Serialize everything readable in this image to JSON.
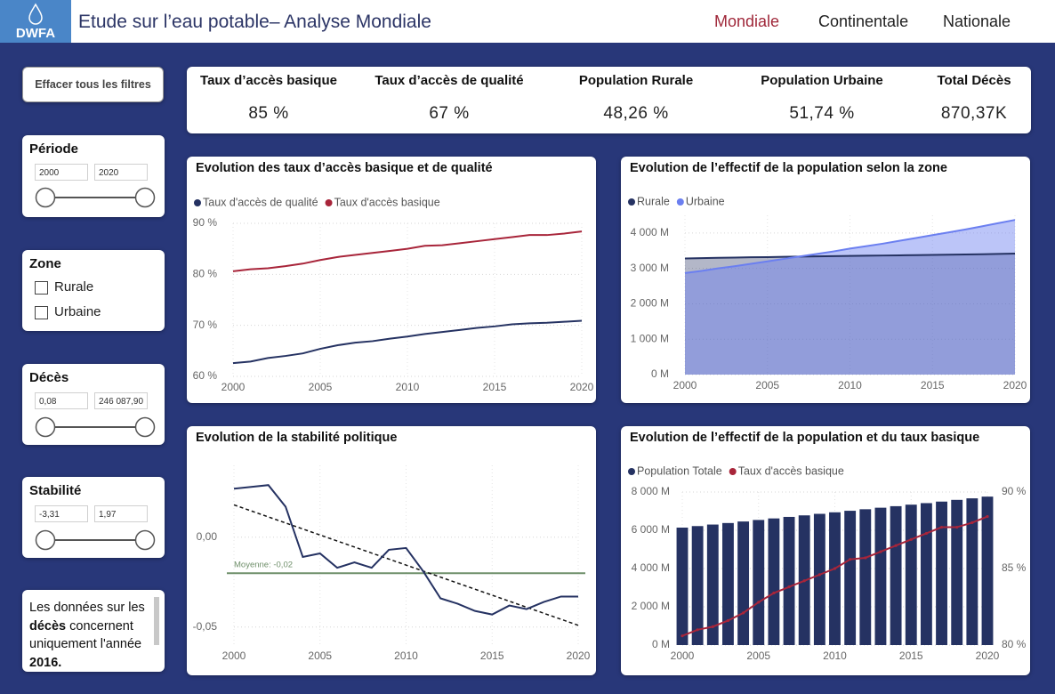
{
  "header": {
    "logo": "DWFA",
    "title": "Etude sur l’eau potable– Analyse Mondiale",
    "tabs": [
      "Mondiale",
      "Continentale",
      "Nationale"
    ]
  },
  "filters": {
    "clear": "Effacer tous les filtres",
    "periode": {
      "title": "Période",
      "min": "2000",
      "max": "2020"
    },
    "zone": {
      "title": "Zone",
      "options": [
        "Rurale",
        "Urbaine"
      ]
    },
    "deces": {
      "title": "Décès",
      "min": "0,08",
      "max": "246 087,90"
    },
    "stabilite": {
      "title": "Stabilité",
      "min": "-3,31",
      "max": "1,97"
    }
  },
  "note": [
    "Les données sur les ",
    "décès",
    " concernent uniquement l'année ",
    "2016."
  ],
  "kpis": [
    {
      "label": "Taux d’accès basique",
      "value": "85 %"
    },
    {
      "label": "Taux d’accès de qualité",
      "value": "67 %"
    },
    {
      "label": "Population Rurale",
      "value": "48,26 %"
    },
    {
      "label": "Population Urbaine",
      "value": "51,74 %"
    },
    {
      "label": "Total Décès",
      "value": "870,37K"
    }
  ],
  "chart_data": [
    {
      "type": "line",
      "title": "Evolution des taux d’accès basique et de qualité",
      "x": [
        2000,
        2001,
        2002,
        2003,
        2004,
        2005,
        2006,
        2007,
        2008,
        2009,
        2010,
        2011,
        2012,
        2013,
        2014,
        2015,
        2016,
        2017,
        2018,
        2019,
        2020
      ],
      "xlim": [
        2000,
        2020
      ],
      "xticks": [
        2000,
        2005,
        2010,
        2015,
        2020
      ],
      "ylim": [
        60,
        90
      ],
      "yticks": [
        {
          "value": 60,
          "label": "60 %"
        },
        {
          "value": 70,
          "label": "70 %"
        },
        {
          "value": 80,
          "label": "80 %"
        },
        {
          "value": 90,
          "label": "90 %"
        }
      ],
      "grid": true,
      "series": [
        {
          "name": "Taux d'accès de qualité",
          "color": "#253262",
          "values": [
            62.6,
            62.9,
            63.6,
            64.0,
            64.5,
            65.4,
            66.1,
            66.6,
            66.9,
            67.4,
            67.8,
            68.3,
            68.7,
            69.1,
            69.5,
            69.8,
            70.2,
            70.4,
            70.5,
            70.7,
            70.9
          ]
        },
        {
          "name": "Taux d'accès basique",
          "color": "#a8253a",
          "values": [
            80.6,
            81.0,
            81.2,
            81.6,
            82.1,
            82.8,
            83.4,
            83.8,
            84.2,
            84.6,
            85.0,
            85.6,
            85.7,
            86.1,
            86.5,
            86.9,
            87.3,
            87.7,
            87.7,
            88.0,
            88.4
          ]
        }
      ]
    },
    {
      "type": "area",
      "title": "Evolution de l’effectif de la population selon la zone",
      "x": [
        2000,
        2001,
        2002,
        2003,
        2004,
        2005,
        2006,
        2007,
        2008,
        2009,
        2010,
        2011,
        2012,
        2013,
        2014,
        2015,
        2016,
        2017,
        2018,
        2019,
        2020
      ],
      "xlim": [
        2000,
        2020
      ],
      "xticks": [
        2000,
        2005,
        2010,
        2015,
        2020
      ],
      "ylim": [
        0,
        4500
      ],
      "yticks": [
        {
          "value": 0,
          "label": "0 M"
        },
        {
          "value": 1000,
          "label": "1 000 M"
        },
        {
          "value": 2000,
          "label": "2 000 M"
        },
        {
          "value": 3000,
          "label": "3 000 M"
        },
        {
          "value": 4000,
          "label": "4 000 M"
        }
      ],
      "grid": true,
      "series": [
        {
          "name": "Rurale",
          "color": "#253262",
          "values": [
            3280,
            3290,
            3300,
            3307,
            3314,
            3320,
            3327,
            3333,
            3340,
            3346,
            3352,
            3358,
            3364,
            3370,
            3376,
            3382,
            3388,
            3394,
            3400,
            3410,
            3418
          ]
        },
        {
          "name": "Urbaine",
          "color": "#6b7ff0",
          "values": [
            2870,
            2930,
            3000,
            3060,
            3130,
            3200,
            3270,
            3340,
            3410,
            3480,
            3560,
            3630,
            3700,
            3780,
            3860,
            3940,
            4020,
            4100,
            4190,
            4280,
            4370
          ]
        }
      ]
    },
    {
      "type": "line",
      "title": "Evolution de la stabilité politique",
      "x": [
        2000,
        2001,
        2002,
        2003,
        2004,
        2005,
        2006,
        2007,
        2008,
        2009,
        2010,
        2011,
        2012,
        2013,
        2014,
        2015,
        2016,
        2017,
        2018,
        2019,
        2020
      ],
      "xlim": [
        2000,
        2020
      ],
      "xticks": [
        2000,
        2005,
        2010,
        2015,
        2020
      ],
      "ylim": [
        -0.06,
        0.04
      ],
      "yticks": [
        {
          "value": -0.05,
          "label": "-0,05"
        },
        {
          "value": 0,
          "label": "0,00"
        }
      ],
      "grid": true,
      "series": [
        {
          "color": "#253262",
          "values": [
            0.027,
            0.028,
            0.029,
            0.017,
            -0.011,
            -0.009,
            -0.017,
            -0.014,
            -0.017,
            -0.007,
            -0.006,
            -0.019,
            -0.034,
            -0.037,
            -0.041,
            -0.043,
            -0.038,
            -0.04,
            -0.036,
            -0.033,
            -0.033
          ]
        }
      ],
      "average": {
        "value": -0.02,
        "label": "Moyenne: -0,02",
        "color": "#6f8f6a"
      },
      "trend": {
        "x": [
          2000,
          2020
        ],
        "values": [
          0.018,
          -0.049
        ],
        "color": "#111111"
      }
    },
    {
      "type": "combo",
      "title": "Evolution de l’effectif de la population et du taux basique",
      "x": [
        2000,
        2001,
        2002,
        2003,
        2004,
        2005,
        2006,
        2007,
        2008,
        2009,
        2010,
        2011,
        2012,
        2013,
        2014,
        2015,
        2016,
        2017,
        2018,
        2019,
        2020
      ],
      "xlim": [
        2000,
        2020
      ],
      "xticks": [
        2000,
        2005,
        2010,
        2015,
        2020
      ],
      "ylim": [
        0,
        8000
      ],
      "yticks": [
        {
          "value": 0,
          "label": "0 M"
        },
        {
          "value": 2000,
          "label": "2 000 M"
        },
        {
          "value": 4000,
          "label": "4 000 M"
        },
        {
          "value": 6000,
          "label": "6 000 M"
        },
        {
          "value": 8000,
          "label": "8 000 M"
        }
      ],
      "y2lim": [
        80,
        90
      ],
      "y2ticks": [
        {
          "value": 80,
          "label": "80 %"
        },
        {
          "value": 85,
          "label": "85 %"
        },
        {
          "value": 90,
          "label": "90 %"
        }
      ],
      "grid": true,
      "series": [
        {
          "name": "Population Totale",
          "color": "#253262",
          "mark": "bar",
          "values": [
            6140,
            6220,
            6300,
            6380,
            6460,
            6540,
            6620,
            6700,
            6780,
            6860,
            6940,
            7020,
            7100,
            7180,
            7260,
            7340,
            7420,
            7500,
            7590,
            7670,
            7760
          ]
        },
        {
          "name": "Taux d'accès basique",
          "color": "#a8253a",
          "mark": "line",
          "axis": "y2",
          "values": [
            80.6,
            81.0,
            81.2,
            81.6,
            82.1,
            82.8,
            83.4,
            83.8,
            84.2,
            84.6,
            85.0,
            85.6,
            85.7,
            86.1,
            86.5,
            86.9,
            87.3,
            87.7,
            87.7,
            88.0,
            88.4
          ]
        }
      ]
    }
  ]
}
